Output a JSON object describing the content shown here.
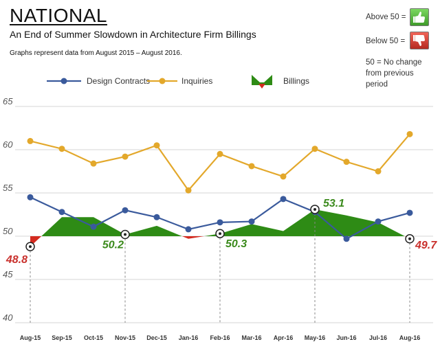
{
  "header": {
    "title": "NATIONAL",
    "subtitle": "An End of Summer Slowdown in Architecture Firm Billings",
    "note": "Graphs represent data from August 2015 – August 2016."
  },
  "key": {
    "above": "Above 50 =",
    "below": "Below 50 =",
    "no_change": "50 = No change from previous period"
  },
  "chart_data": {
    "type": "line",
    "categories": [
      "Aug-15",
      "Sep-15",
      "Oct-15",
      "Nov-15",
      "Dec-15",
      "Jan-16",
      "Feb-16",
      "Mar-16",
      "Apr-16",
      "May-16",
      "Jun-16",
      "Jul-16",
      "Aug-16"
    ],
    "series": [
      {
        "name": "Design Contracts",
        "color": "#3a5a9c",
        "values": [
          54.5,
          52.8,
          51.1,
          53.0,
          52.2,
          50.8,
          51.6,
          51.7,
          54.3,
          52.8,
          49.7,
          51.7,
          52.7
        ]
      },
      {
        "name": "Inquiries",
        "color": "#e3a82b",
        "values": [
          61.0,
          60.1,
          58.4,
          59.2,
          60.5,
          55.3,
          59.5,
          58.1,
          56.9,
          60.1,
          58.6,
          57.5,
          61.8
        ]
      },
      {
        "name": "Billings",
        "type": "area",
        "baseline": 50,
        "color_above": "#2e8b15",
        "color_below": "#d42b20",
        "values": [
          48.8,
          52.2,
          52.2,
          50.2,
          51.2,
          49.7,
          50.3,
          51.4,
          50.6,
          53.1,
          52.4,
          51.6,
          49.7
        ]
      }
    ],
    "annotations": [
      {
        "category": "Aug-15",
        "label": "48.8",
        "color": "#c9302c"
      },
      {
        "category": "Nov-15",
        "label": "50.2",
        "color": "#3b8a1c"
      },
      {
        "category": "Feb-16",
        "label": "50.3",
        "color": "#3b8a1c"
      },
      {
        "category": "May-16",
        "label": "53.1",
        "color": "#3b8a1c"
      },
      {
        "category": "Aug-16",
        "label": "49.7",
        "color": "#c9302c"
      }
    ],
    "yticks": [
      40,
      45,
      50,
      55,
      60,
      65
    ],
    "ylim": [
      40,
      66
    ],
    "title": "NATIONAL",
    "xlabel": "",
    "ylabel": "",
    "grid": true,
    "legend": "top"
  }
}
